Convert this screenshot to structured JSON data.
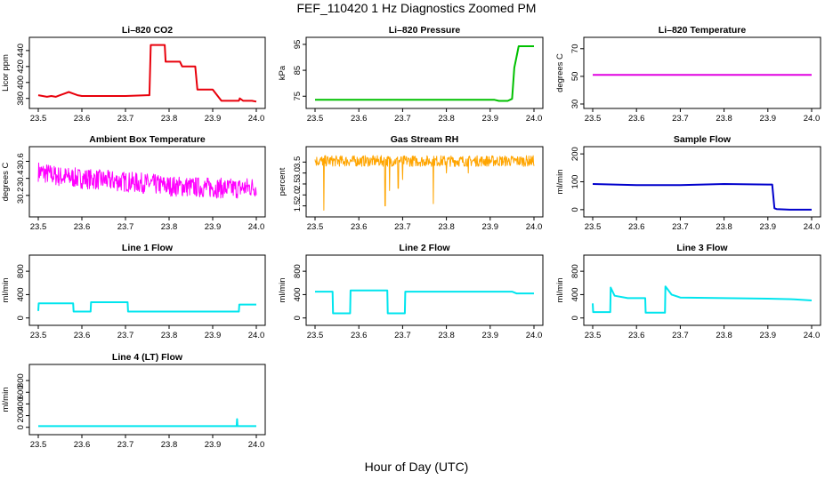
{
  "title": "FEF_110420  1 Hz Diagnostics Zoomed PM",
  "xlabel": "Hour of Day (UTC)",
  "chart_data": [
    {
      "type": "line",
      "title": "Li–820 CO2",
      "xlabel": "",
      "ylabel": "Licor ppm",
      "color": "#e8000b",
      "x_ticks": [
        "23.5",
        "23.6",
        "23.7",
        "23.8",
        "23.9",
        "24.0"
      ],
      "y_ticks": [
        "380",
        "400",
        "420",
        "440"
      ],
      "xlim": [
        23.5,
        24.0
      ],
      "ylim": [
        373,
        451
      ],
      "series": [
        {
          "x": [
            23.5,
            23.51,
            23.52,
            23.53,
            23.54,
            23.55,
            23.56,
            23.57,
            23.58,
            23.59,
            23.6,
            23.65,
            23.7,
            23.75,
            23.755,
            23.758,
            23.79,
            23.792,
            23.82,
            23.825,
            23.83,
            23.835,
            23.86,
            23.865,
            23.9,
            23.92,
            23.93,
            23.935,
            23.96,
            23.962,
            23.97,
            23.98,
            23.99,
            24.0
          ],
          "y": [
            384,
            383,
            382,
            383,
            382,
            384,
            386,
            388,
            386,
            384,
            383,
            383,
            383,
            384,
            384,
            447,
            447,
            426,
            426,
            426,
            420,
            420,
            420,
            391,
            391,
            377,
            377,
            377,
            377,
            380,
            377,
            377,
            377,
            376
          ]
        }
      ]
    },
    {
      "type": "line",
      "title": "Li–820 Pressure",
      "xlabel": "",
      "ylabel": "kPa",
      "color": "#00c000",
      "x_ticks": [
        "23.5",
        "23.6",
        "23.7",
        "23.8",
        "23.9",
        "24.0"
      ],
      "y_ticks": [
        "75",
        "85",
        "95"
      ],
      "xlim": [
        23.5,
        24.0
      ],
      "ylim": [
        72,
        96
      ],
      "series": [
        {
          "x": [
            23.5,
            23.6,
            23.7,
            23.8,
            23.9,
            23.91,
            23.92,
            23.94,
            23.95,
            23.955,
            23.96,
            23.965,
            23.97,
            24.0
          ],
          "y": [
            73.6,
            73.6,
            73.6,
            73.6,
            73.6,
            73.6,
            73.2,
            73.2,
            74,
            86,
            90,
            94.3,
            94.3,
            94.3
          ]
        }
      ]
    },
    {
      "type": "line",
      "title": "Li–820 Temperature",
      "xlabel": "",
      "ylabel": "degrees C",
      "color": "#e000e0",
      "x_ticks": [
        "23.5",
        "23.6",
        "23.7",
        "23.8",
        "23.9",
        "24.0"
      ],
      "y_ticks": [
        "30",
        "50",
        "70"
      ],
      "xlim": [
        23.5,
        24.0
      ],
      "ylim": [
        30,
        75
      ],
      "series": [
        {
          "x": [
            23.5,
            24.0
          ],
          "y": [
            51,
            51
          ]
        }
      ]
    },
    {
      "type": "line",
      "title": "Ambient Box Temperature",
      "xlabel": "",
      "ylabel": "degrees C",
      "color": "#ff00ff",
      "x_ticks": [
        "23.5",
        "23.6",
        "23.7",
        "23.8",
        "23.9",
        "24.0"
      ],
      "y_ticks": [
        "30.2",
        "30.4",
        "30.6"
      ],
      "xlim": [
        23.5,
        24.0
      ],
      "ylim": [
        30.0,
        30.72
      ],
      "series": [
        {
          "x": [
            23.5,
            23.55,
            23.6,
            23.65,
            23.7,
            23.75,
            23.8,
            23.85,
            23.9,
            23.95,
            24.0
          ],
          "y": [
            30.48,
            30.42,
            30.4,
            30.38,
            30.36,
            30.34,
            30.31,
            30.3,
            30.29,
            30.28,
            30.3
          ],
          "noise_band": 0.12
        }
      ]
    },
    {
      "type": "line",
      "title": "Gas Stream RH",
      "xlabel": "",
      "ylabel": "percent",
      "color": "#ffa500",
      "x_ticks": [
        "23.5",
        "23.6",
        "23.7",
        "23.8",
        "23.9",
        "24.0"
      ],
      "y_ticks": [
        "1.5",
        "2.0",
        "2.5",
        "3.0",
        "3.5"
      ],
      "xlim": [
        23.5,
        24.0
      ],
      "ylim": [
        1.2,
        4.0
      ],
      "series": [
        {
          "x": [
            23.5,
            24.0
          ],
          "y": [
            3.55,
            3.55
          ],
          "noise_band": 0.25,
          "dips": [
            [
              23.52,
              1.3
            ],
            [
              23.66,
              1.5
            ],
            [
              23.67,
              2.2
            ],
            [
              23.69,
              2.3
            ],
            [
              23.7,
              2.7
            ],
            [
              23.77,
              1.6
            ],
            [
              23.8,
              3.0
            ],
            [
              23.85,
              3.0
            ]
          ]
        }
      ]
    },
    {
      "type": "line",
      "title": "Sample Flow",
      "xlabel": "",
      "ylabel": "ml/min",
      "color": "#0000cc",
      "x_ticks": [
        "23.5",
        "23.6",
        "23.7",
        "23.8",
        "23.9",
        "24.0"
      ],
      "y_ticks": [
        "0",
        "100",
        "200"
      ],
      "xlim": [
        23.5,
        24.0
      ],
      "ylim": [
        -10,
        210
      ],
      "series": [
        {
          "x": [
            23.5,
            23.6,
            23.7,
            23.8,
            23.9,
            23.91,
            23.915,
            23.92,
            23.95,
            24.0
          ],
          "y": [
            92,
            88,
            88,
            92,
            90,
            90,
            5,
            2,
            0,
            0
          ]
        }
      ]
    },
    {
      "type": "line",
      "title": "Line 1 Flow",
      "xlabel": "",
      "ylabel": "ml/min",
      "color": "#00e5ee",
      "x_ticks": [
        "23.5",
        "23.6",
        "23.7",
        "23.8",
        "23.9",
        "24.0"
      ],
      "y_ticks": [
        "0",
        "400",
        "800"
      ],
      "xlim": [
        23.5,
        24.0
      ],
      "ylim": [
        -50,
        1000
      ],
      "series": [
        {
          "x": [
            23.5,
            23.501,
            23.58,
            23.581,
            23.62,
            23.621,
            23.705,
            23.706,
            23.96,
            23.961,
            24.0
          ],
          "y": [
            120,
            250,
            250,
            110,
            110,
            270,
            270,
            110,
            110,
            230,
            230
          ]
        }
      ]
    },
    {
      "type": "line",
      "title": "Line 2 Flow",
      "xlabel": "",
      "ylabel": "ml/min",
      "color": "#00e5ee",
      "x_ticks": [
        "23.5",
        "23.6",
        "23.7",
        "23.8",
        "23.9",
        "24.0"
      ],
      "y_ticks": [
        "0",
        "400",
        "800"
      ],
      "xlim": [
        23.5,
        24.0
      ],
      "ylim": [
        -50,
        1000
      ],
      "series": [
        {
          "x": [
            23.5,
            23.54,
            23.541,
            23.58,
            23.581,
            23.665,
            23.666,
            23.705,
            23.706,
            23.95,
            23.96,
            24.0
          ],
          "y": [
            450,
            450,
            80,
            80,
            470,
            470,
            80,
            80,
            450,
            450,
            420,
            420
          ]
        }
      ]
    },
    {
      "type": "line",
      "title": "Line 3 Flow",
      "xlabel": "",
      "ylabel": "ml/min",
      "color": "#00e5ee",
      "x_ticks": [
        "23.5",
        "23.6",
        "23.7",
        "23.8",
        "23.9",
        "24.0"
      ],
      "y_ticks": [
        "0",
        "400",
        "800"
      ],
      "xlim": [
        23.5,
        24.0
      ],
      "ylim": [
        -50,
        1000
      ],
      "series": [
        {
          "x": [
            23.5,
            23.501,
            23.54,
            23.541,
            23.55,
            23.58,
            23.62,
            23.621,
            23.665,
            23.666,
            23.68,
            23.7,
            23.9,
            23.96,
            24.0
          ],
          "y": [
            250,
            100,
            100,
            520,
            380,
            340,
            340,
            90,
            90,
            540,
            400,
            350,
            330,
            320,
            300
          ]
        }
      ]
    },
    {
      "type": "line",
      "title": "Line 4 (LT) Flow",
      "xlabel": "",
      "ylabel": "ml/min",
      "color": "#00e5ee",
      "x_ticks": [
        "23.5",
        "23.6",
        "23.7",
        "23.8",
        "23.9",
        "24.0"
      ],
      "y_ticks": [
        "0",
        "200",
        "400",
        "600",
        "800"
      ],
      "xlim": [
        23.5,
        24.0
      ],
      "ylim": [
        -50,
        1000
      ],
      "series": [
        {
          "x": [
            23.5,
            23.7,
            23.9,
            23.955,
            23.956,
            23.957,
            23.958,
            24.0
          ],
          "y": [
            20,
            20,
            20,
            20,
            140,
            20,
            20,
            20
          ]
        }
      ]
    }
  ]
}
